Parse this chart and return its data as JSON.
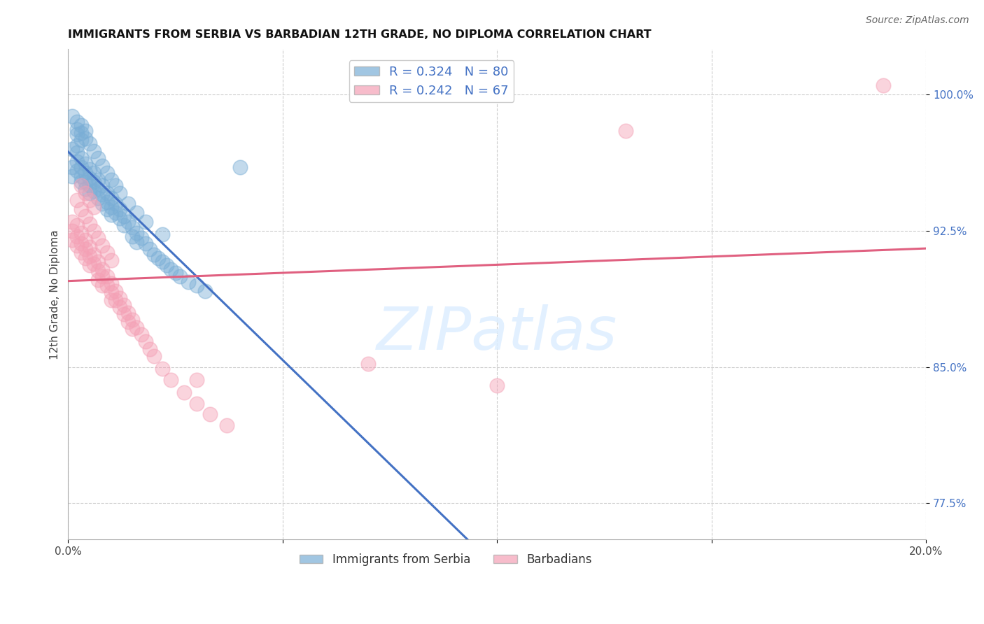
{
  "title": "IMMIGRANTS FROM SERBIA VS BARBADIAN 12TH GRADE, NO DIPLOMA CORRELATION CHART",
  "source": "Source: ZipAtlas.com",
  "ylabel": "12th Grade, No Diploma",
  "x_min": 0.0,
  "x_max": 0.2,
  "y_min": 0.755,
  "y_max": 1.025,
  "x_ticks": [
    0.0,
    0.05,
    0.1,
    0.15,
    0.2
  ],
  "x_tick_labels": [
    "0.0%",
    "",
    "",
    "",
    "20.0%"
  ],
  "y_ticks": [
    0.775,
    0.85,
    0.925,
    1.0
  ],
  "y_tick_labels": [
    "77.5%",
    "85.0%",
    "92.5%",
    "100.0%"
  ],
  "serbia_color": "#7aaed6",
  "barbadian_color": "#f4a0b5",
  "serbia_line_color": "#4472c4",
  "barbadian_line_color": "#e06080",
  "serbia_R": 0.324,
  "serbia_N": 80,
  "barbadian_R": 0.242,
  "barbadian_N": 67,
  "legend_label_1": "Immigrants from Serbia",
  "legend_label_2": "Barbadians",
  "background_color": "#ffffff",
  "grid_color": "#cccccc",
  "serbia_x": [
    0.001,
    0.001,
    0.001,
    0.002,
    0.002,
    0.002,
    0.002,
    0.002,
    0.003,
    0.003,
    0.003,
    0.003,
    0.003,
    0.004,
    0.004,
    0.004,
    0.004,
    0.005,
    0.005,
    0.005,
    0.005,
    0.006,
    0.006,
    0.006,
    0.007,
    0.007,
    0.007,
    0.008,
    0.008,
    0.008,
    0.009,
    0.009,
    0.009,
    0.01,
    0.01,
    0.01,
    0.011,
    0.011,
    0.012,
    0.012,
    0.013,
    0.013,
    0.014,
    0.015,
    0.015,
    0.016,
    0.016,
    0.017,
    0.018,
    0.019,
    0.02,
    0.021,
    0.022,
    0.023,
    0.024,
    0.025,
    0.026,
    0.028,
    0.03,
    0.032,
    0.001,
    0.002,
    0.002,
    0.003,
    0.003,
    0.004,
    0.004,
    0.005,
    0.006,
    0.007,
    0.008,
    0.009,
    0.01,
    0.011,
    0.012,
    0.014,
    0.016,
    0.018,
    0.022,
    0.04
  ],
  "serbia_y": [
    0.96,
    0.955,
    0.97,
    0.972,
    0.968,
    0.963,
    0.958,
    0.978,
    0.965,
    0.96,
    0.955,
    0.952,
    0.975,
    0.962,
    0.957,
    0.952,
    0.948,
    0.959,
    0.954,
    0.95,
    0.946,
    0.957,
    0.952,
    0.947,
    0.953,
    0.948,
    0.943,
    0.95,
    0.945,
    0.94,
    0.946,
    0.941,
    0.937,
    0.943,
    0.938,
    0.934,
    0.94,
    0.935,
    0.937,
    0.932,
    0.933,
    0.928,
    0.93,
    0.927,
    0.922,
    0.924,
    0.919,
    0.921,
    0.918,
    0.915,
    0.912,
    0.91,
    0.908,
    0.906,
    0.904,
    0.902,
    0.9,
    0.897,
    0.895,
    0.892,
    0.988,
    0.985,
    0.981,
    0.983,
    0.979,
    0.98,
    0.976,
    0.973,
    0.969,
    0.965,
    0.961,
    0.957,
    0.953,
    0.95,
    0.946,
    0.94,
    0.935,
    0.93,
    0.923,
    0.96
  ],
  "barbadian_x": [
    0.001,
    0.001,
    0.001,
    0.002,
    0.002,
    0.002,
    0.003,
    0.003,
    0.003,
    0.004,
    0.004,
    0.004,
    0.005,
    0.005,
    0.005,
    0.006,
    0.006,
    0.007,
    0.007,
    0.007,
    0.008,
    0.008,
    0.008,
    0.009,
    0.009,
    0.01,
    0.01,
    0.01,
    0.011,
    0.011,
    0.012,
    0.012,
    0.013,
    0.013,
    0.014,
    0.014,
    0.015,
    0.015,
    0.016,
    0.017,
    0.018,
    0.019,
    0.02,
    0.022,
    0.024,
    0.027,
    0.03,
    0.033,
    0.037,
    0.002,
    0.003,
    0.004,
    0.005,
    0.006,
    0.007,
    0.008,
    0.009,
    0.01,
    0.003,
    0.004,
    0.005,
    0.006,
    0.03,
    0.07,
    0.13,
    0.19,
    0.1
  ],
  "barbadian_y": [
    0.93,
    0.925,
    0.92,
    0.928,
    0.922,
    0.917,
    0.924,
    0.918,
    0.913,
    0.92,
    0.915,
    0.91,
    0.916,
    0.911,
    0.906,
    0.912,
    0.907,
    0.908,
    0.903,
    0.898,
    0.904,
    0.9,
    0.895,
    0.9,
    0.895,
    0.896,
    0.891,
    0.887,
    0.892,
    0.887,
    0.888,
    0.883,
    0.884,
    0.879,
    0.88,
    0.875,
    0.876,
    0.871,
    0.872,
    0.868,
    0.864,
    0.86,
    0.856,
    0.849,
    0.843,
    0.836,
    0.83,
    0.824,
    0.818,
    0.942,
    0.937,
    0.933,
    0.929,
    0.925,
    0.921,
    0.917,
    0.913,
    0.909,
    0.95,
    0.946,
    0.942,
    0.938,
    0.843,
    0.852,
    0.98,
    1.005,
    0.84
  ]
}
